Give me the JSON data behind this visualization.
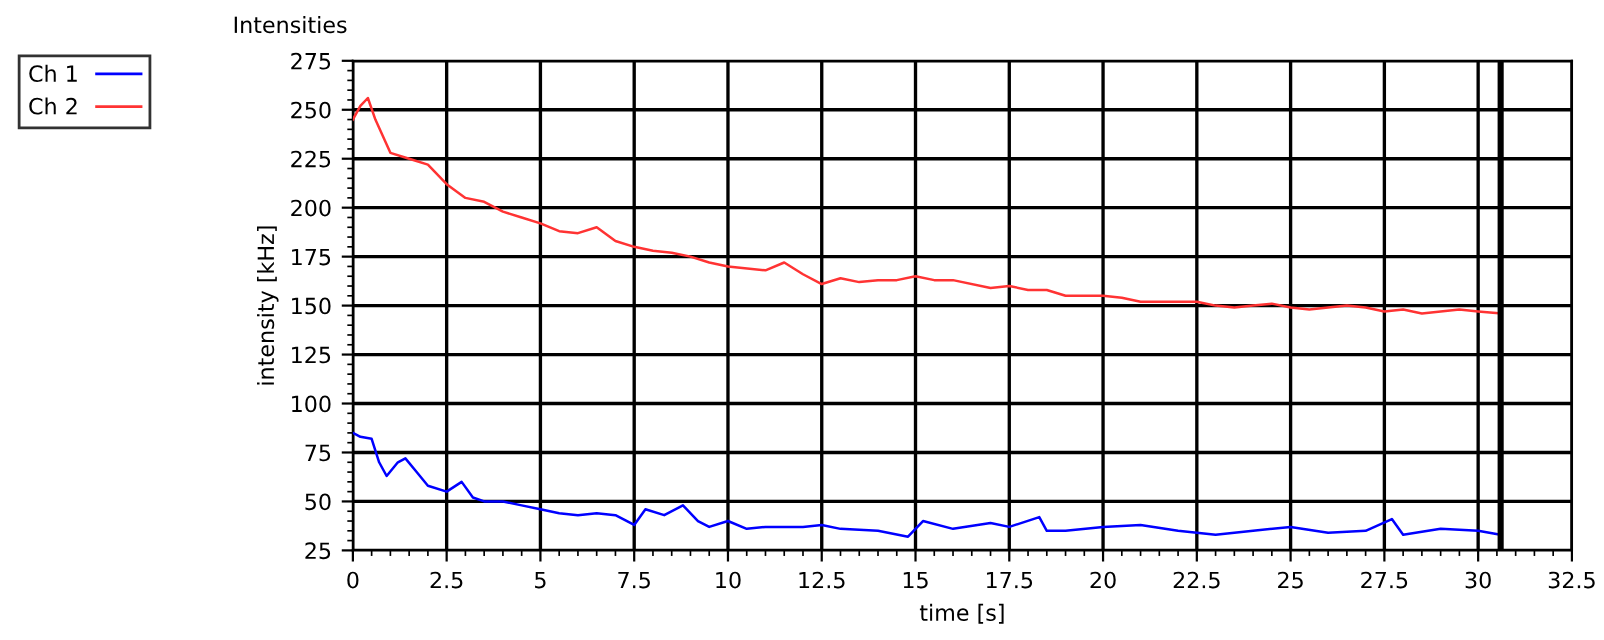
{
  "chart_data": {
    "type": "line",
    "title": "Intensities",
    "xlabel": "time [s]",
    "ylabel": "intensity [kHz]",
    "xlim": [
      0,
      32.5
    ],
    "xticks": [
      0,
      2.5,
      5,
      7.5,
      10,
      12.5,
      15,
      17.5,
      20,
      22.5,
      25,
      27.5,
      30,
      32.5
    ],
    "ylim": [
      25,
      275
    ],
    "yticks": [
      25,
      50,
      75,
      100,
      125,
      150,
      175,
      200,
      225,
      250,
      275
    ],
    "grid": true,
    "legend": "top left",
    "marker": "none",
    "line_style": "solid",
    "ref_lines": [
      {
        "axis": "x",
        "value": 30.6,
        "color": "#000000"
      }
    ],
    "series": [
      {
        "name": "Ch 1",
        "color": "#0000ff",
        "x": [
          0,
          0.2,
          0.5,
          0.7,
          0.9,
          1.2,
          1.4,
          1.7,
          2,
          2.5,
          2.9,
          3.2,
          3.5,
          4,
          4.5,
          5,
          5.5,
          6,
          6.5,
          7,
          7.5,
          7.8,
          8.3,
          8.8,
          9.2,
          9.5,
          10,
          10.5,
          11,
          12,
          12.5,
          13,
          14,
          14.8,
          15.2,
          16,
          17,
          17.5,
          18.3,
          18.5,
          19,
          20,
          21,
          22,
          22.5,
          23,
          24,
          25,
          26,
          27,
          27.7,
          28,
          29,
          30,
          30.6
        ],
        "values": [
          85,
          83,
          82,
          70,
          63,
          70,
          72,
          65,
          58,
          55,
          60,
          52,
          50,
          50,
          48,
          46,
          44,
          43,
          44,
          43,
          38,
          46,
          43,
          48,
          40,
          37,
          40,
          36,
          37,
          37,
          38,
          36,
          35,
          32,
          40,
          36,
          39,
          37,
          42,
          35,
          35,
          37,
          38,
          35,
          34,
          33,
          35,
          37,
          34,
          35,
          41,
          33,
          36,
          35,
          33
        ]
      },
      {
        "name": "Ch 2",
        "color": "#ff3333",
        "x": [
          0,
          0.2,
          0.4,
          0.6,
          1,
          1.5,
          2,
          2.5,
          3,
          3.5,
          4,
          4.5,
          5,
          5.5,
          6,
          6.5,
          7,
          7.5,
          8,
          8.5,
          9,
          9.5,
          10,
          11,
          11.5,
          12,
          12.5,
          13,
          13.5,
          14,
          14.5,
          15,
          15.5,
          16,
          17,
          17.5,
          18,
          18.5,
          19,
          20,
          20.5,
          21,
          22,
          22.5,
          23,
          23.5,
          24,
          24.5,
          25,
          25.5,
          26,
          26.5,
          27,
          27.5,
          28,
          28.5,
          29,
          29.5,
          30,
          30.6
        ],
        "values": [
          245,
          252,
          256,
          245,
          228,
          225,
          222,
          212,
          205,
          203,
          198,
          195,
          192,
          188,
          187,
          190,
          183,
          180,
          178,
          177,
          175,
          172,
          170,
          168,
          172,
          166,
          161,
          164,
          162,
          163,
          163,
          165,
          163,
          163,
          159,
          160,
          158,
          158,
          155,
          155,
          154,
          152,
          152,
          152,
          150,
          149,
          150,
          151,
          149,
          148,
          149,
          150,
          149,
          147,
          148,
          146,
          147,
          148,
          147,
          146
        ]
      }
    ]
  }
}
